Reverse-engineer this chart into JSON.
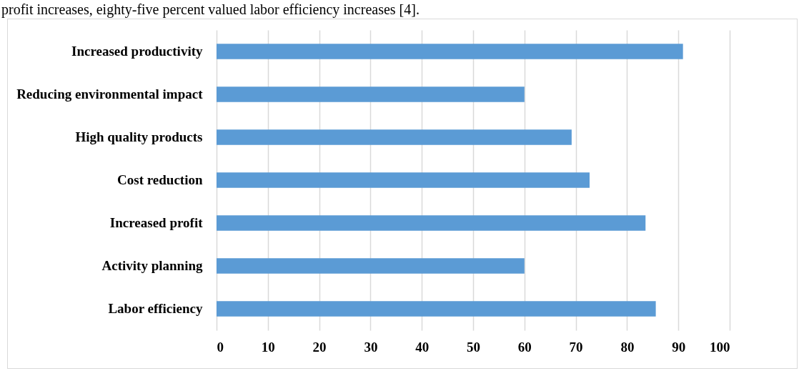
{
  "chart_data": {
    "type": "bar",
    "orientation": "horizontal",
    "categories": [
      "Increased productivity",
      "Reducing environmental impact",
      "High quality products",
      "Cost reduction",
      "Increased profit",
      "Activity planning",
      "Labor efficiency"
    ],
    "values": [
      90.9,
      60,
      69.2,
      72.7,
      83.6,
      60,
      85.6
    ],
    "color": "#5b9bd5",
    "xlim": [
      0,
      100
    ],
    "xticks": [
      0,
      10,
      20,
      30,
      40,
      50,
      60,
      70,
      80,
      90,
      100
    ],
    "grid": "x",
    "annotations": [
      "profit increases, eighty-five percent valued labor efficiency increases [4]."
    ]
  }
}
